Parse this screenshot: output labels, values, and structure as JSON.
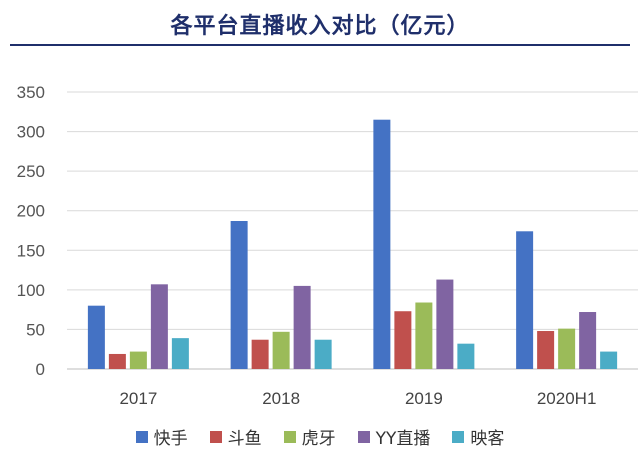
{
  "chart_data": {
    "type": "bar",
    "title": "各平台直播收入对比（亿元）",
    "categories": [
      "2017",
      "2018",
      "2019",
      "2020H1"
    ],
    "ylim": [
      0,
      350
    ],
    "yticks": [
      0,
      50,
      100,
      150,
      200,
      250,
      300,
      350
    ],
    "grid": true,
    "legend_position": "bottom",
    "series": [
      {
        "name": "快手",
        "color": "#4472c4",
        "values": [
          80,
          187,
          315,
          174
        ]
      },
      {
        "name": "斗鱼",
        "color": "#c0504d",
        "values": [
          19,
          37,
          73,
          48
        ]
      },
      {
        "name": "虎牙",
        "color": "#9bbb59",
        "values": [
          22,
          47,
          84,
          51
        ]
      },
      {
        "name": "YY直播",
        "color": "#8064a2",
        "values": [
          107,
          105,
          113,
          72
        ]
      },
      {
        "name": "映客",
        "color": "#4bacc6",
        "values": [
          39,
          37,
          32,
          22
        ]
      }
    ]
  }
}
